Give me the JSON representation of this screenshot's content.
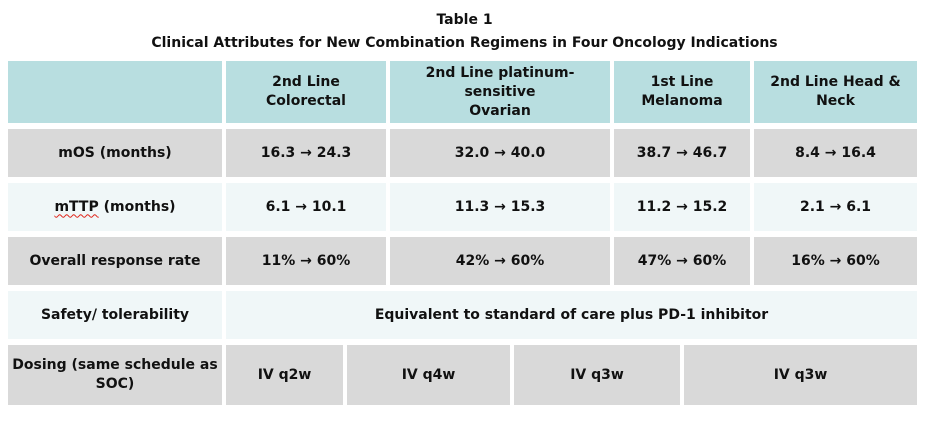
{
  "title": {
    "line1": "Table 1",
    "line2": "Clinical Attributes for New Combination Regimens in Four Oncology Indications"
  },
  "colors": {
    "header_bg": "#b8dee0",
    "gray_row_bg": "#d9d9d9",
    "light_row_bg": "#f0f7f8",
    "text": "#111111",
    "spellcheck_underline": "#e0251b"
  },
  "table": {
    "columns": [
      {
        "lines": [
          "2nd Line Colorectal"
        ]
      },
      {
        "lines": [
          "2nd Line platinum-sensitive",
          "Ovarian"
        ]
      },
      {
        "lines": [
          "1st Line",
          "Melanoma"
        ]
      },
      {
        "lines": [
          "2nd Line Head &",
          "Neck"
        ]
      }
    ],
    "rows": {
      "mos": {
        "label": "mOS (months)",
        "values": [
          "16.3 → 24.3",
          "32.0 → 40.0",
          "38.7 → 46.7",
          "8.4 → 16.4"
        ]
      },
      "mttp": {
        "label_spellchecked": "mTTP",
        "label_rest": " (months)",
        "values": [
          "6.1 → 10.1",
          "11.3 → 15.3",
          "11.2 → 15.2",
          "2.1 → 6.1"
        ]
      },
      "orr": {
        "label": "Overall response rate",
        "values": [
          "11% → 60%",
          "42% → 60%",
          "47% → 60%",
          "16% → 60%"
        ]
      },
      "safety": {
        "label": "Safety/ tolerability",
        "merged_value": "Equivalent to standard of care plus PD-1 inhibitor"
      },
      "dosing": {
        "label": "Dosing (same schedule as SOC)",
        "values": [
          "IV q2w",
          "IV q4w",
          "IV q3w",
          "IV q3w"
        ]
      }
    }
  }
}
